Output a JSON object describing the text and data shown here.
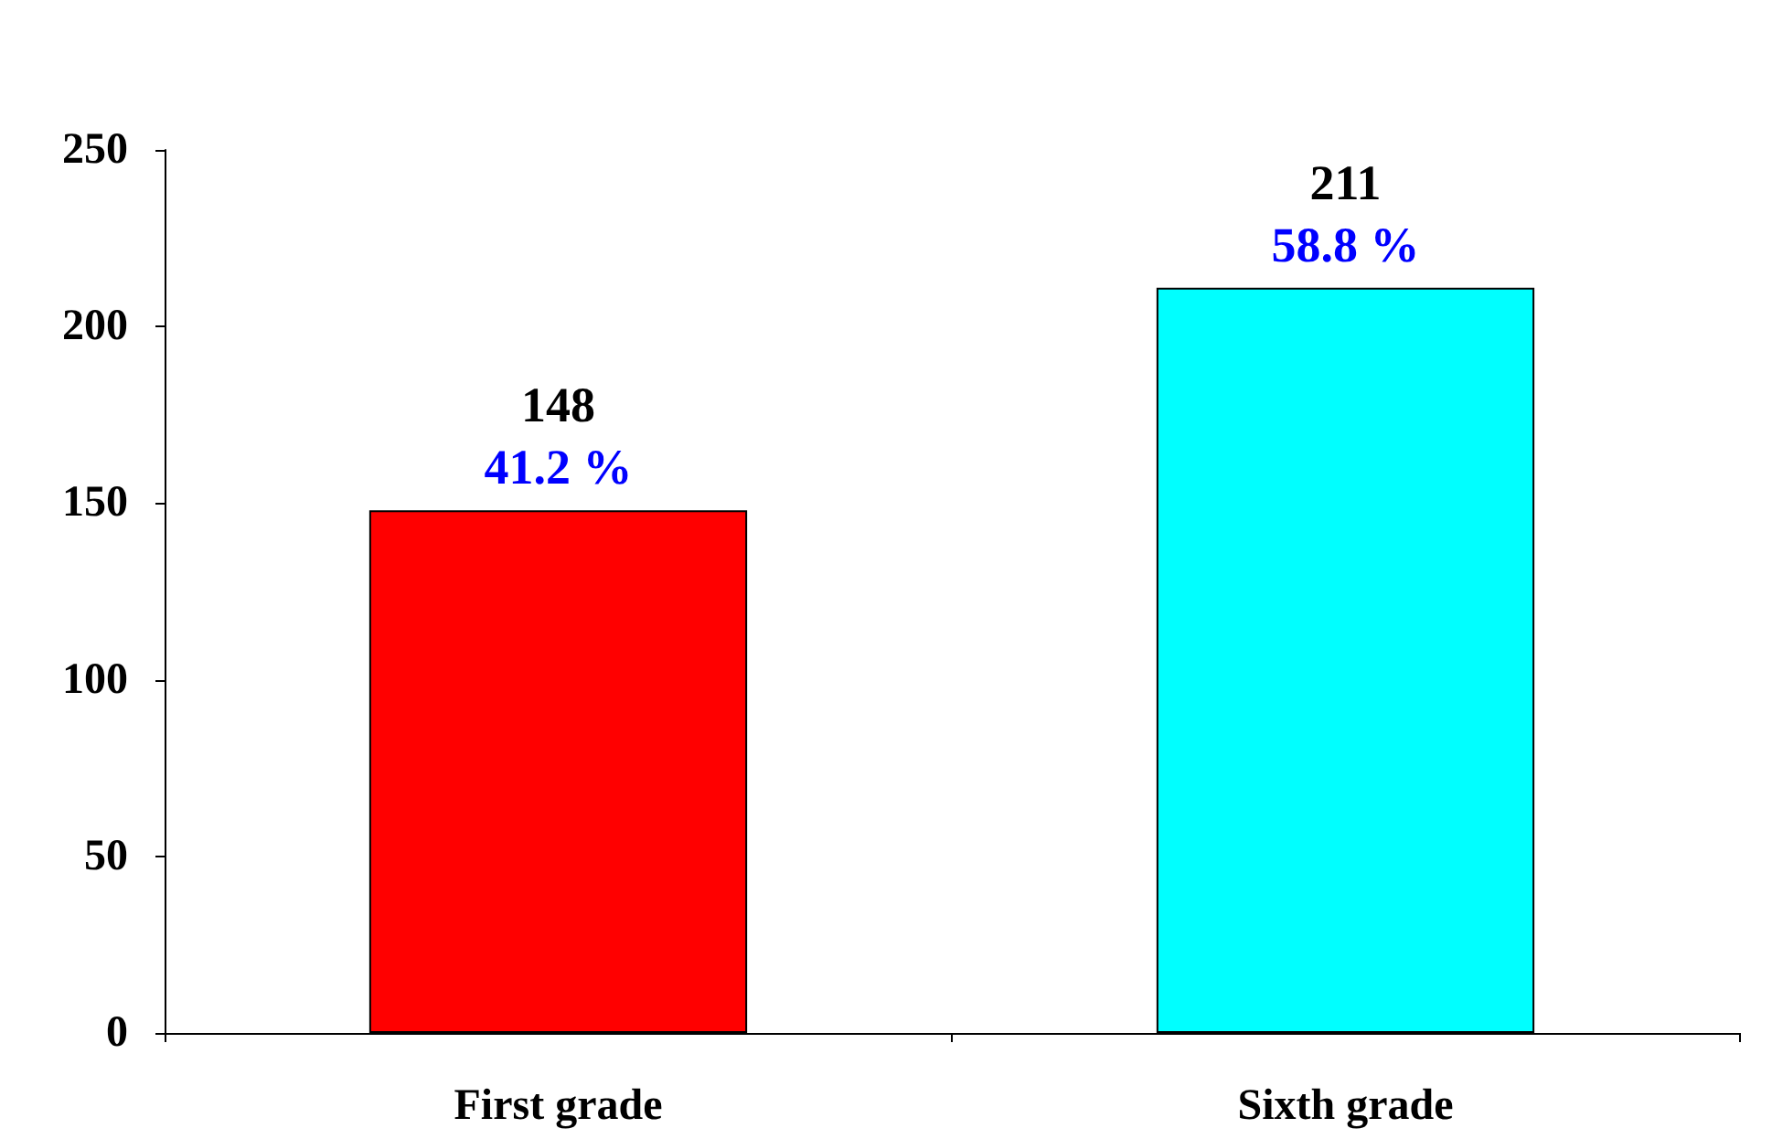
{
  "chart_data": {
    "type": "bar",
    "categories": [
      "First grade",
      "Sixth grade"
    ],
    "values": [
      148,
      211
    ],
    "colors": [
      "#ff0000",
      "#00ffff"
    ],
    "ylim": [
      0,
      250
    ],
    "yticks": [
      0,
      50,
      100,
      150,
      200,
      250
    ],
    "grid": false,
    "data_labels": true,
    "annotations": [
      {
        "text": "41.2 %",
        "x": "First grade",
        "y": 148
      },
      {
        "text": "58.8 %",
        "x": "Sixth grade",
        "y": 211
      }
    ]
  }
}
